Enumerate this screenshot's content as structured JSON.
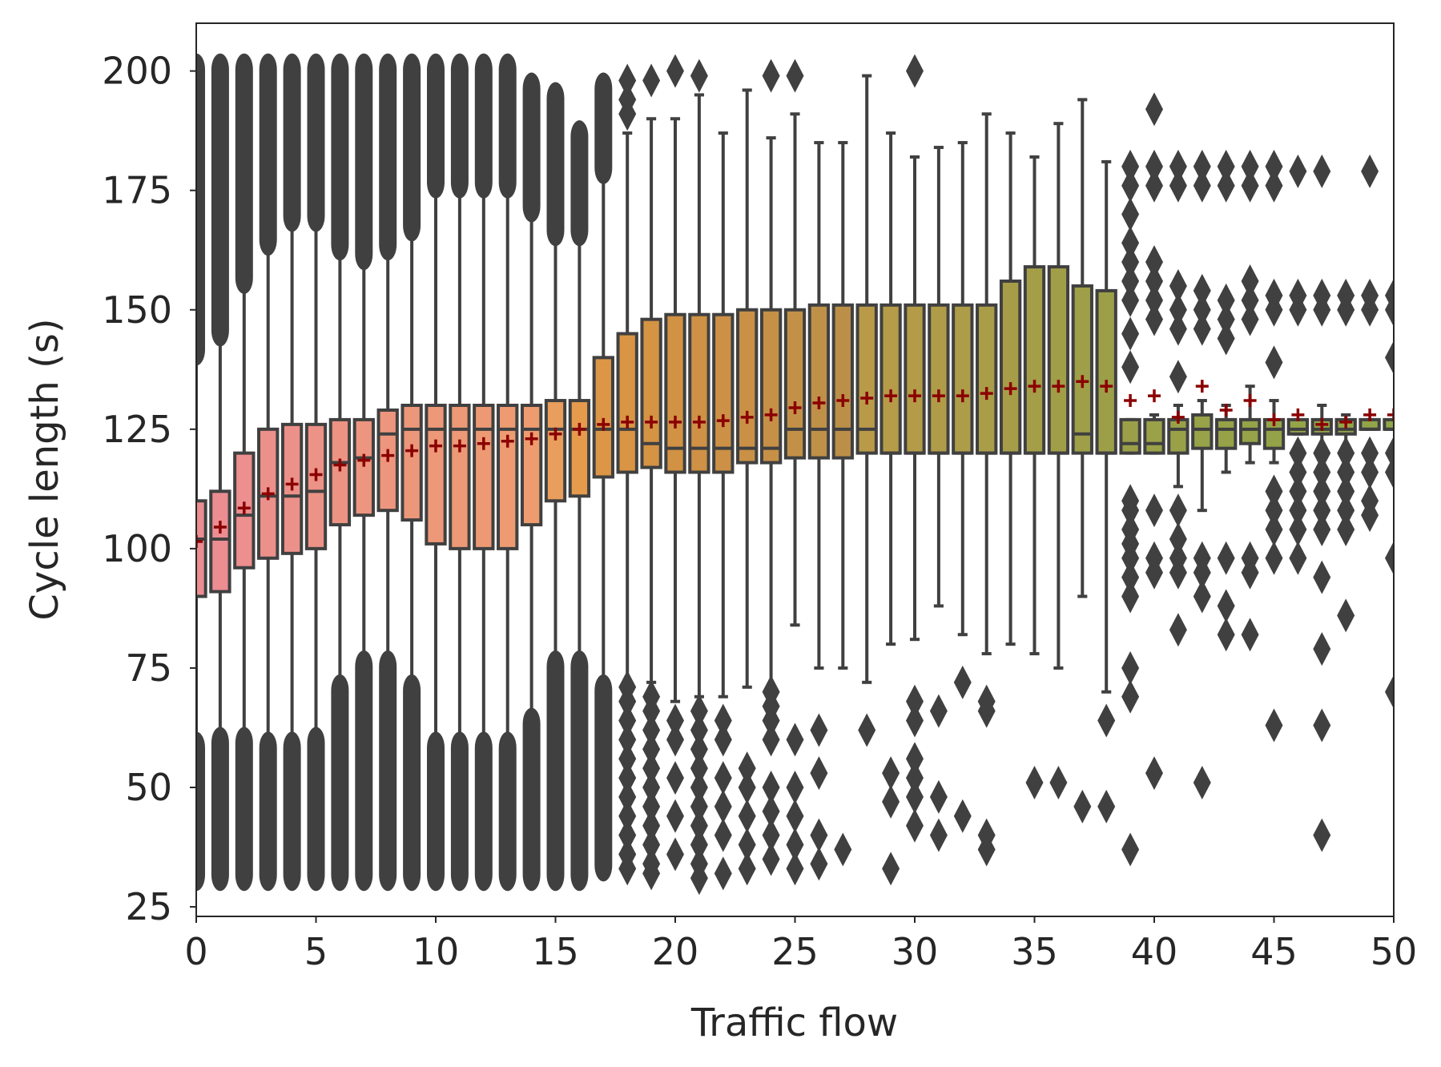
{
  "chart_data": {
    "type": "box",
    "title": "",
    "xlabel": "Traffic flow",
    "ylabel": "Cycle length (s)",
    "xlim": [
      0,
      50
    ],
    "ylim": [
      23,
      210
    ],
    "xticks": [
      "0",
      "5",
      "10",
      "15",
      "20",
      "25",
      "30",
      "35",
      "40",
      "45",
      "50"
    ],
    "yticks": [
      "25",
      "50",
      "75",
      "100",
      "125",
      "150",
      "175",
      "200"
    ],
    "grid": false,
    "legend": "none",
    "mean_marker_color": "#8b0000",
    "box_edge_color": "#404040",
    "outlier_color": "#404040",
    "boxes": [
      {
        "x": 0,
        "q1": 90,
        "median": 102,
        "q3": 110,
        "whislo": 60,
        "whishi": 140,
        "mean": 101.5,
        "fill": "#ec8d92",
        "outliers": {
          "dense": [
            [
              30,
              60
            ],
            [
              140,
              202
            ]
          ]
        }
      },
      {
        "x": 1,
        "q1": 91,
        "median": 102,
        "q3": 112,
        "whislo": 61,
        "whishi": 144,
        "mean": 104.5,
        "fill": "#ec8d91",
        "outliers": {
          "dense": [
            [
              30,
              61
            ],
            [
              144,
              202
            ]
          ]
        }
      },
      {
        "x": 2,
        "q1": 96,
        "median": 107,
        "q3": 120,
        "whislo": 61,
        "whishi": 155,
        "mean": 108.5,
        "fill": "#ec8f8e",
        "outliers": {
          "dense": [
            [
              30,
              61
            ],
            [
              155,
              202
            ]
          ]
        }
      },
      {
        "x": 3,
        "q1": 98,
        "median": 111,
        "q3": 125,
        "whislo": 60,
        "whishi": 163,
        "mean": 111.5,
        "fill": "#ec908b",
        "outliers": {
          "dense": [
            [
              30,
              60
            ],
            [
              163,
              202
            ]
          ]
        }
      },
      {
        "x": 4,
        "q1": 99,
        "median": 111,
        "q3": 126,
        "whislo": 60,
        "whishi": 168,
        "mean": 113.5,
        "fill": "#ec9189",
        "outliers": {
          "dense": [
            [
              30,
              60
            ],
            [
              168,
              202
            ]
          ]
        }
      },
      {
        "x": 5,
        "q1": 100,
        "median": 112,
        "q3": 126,
        "whislo": 61,
        "whishi": 168,
        "mean": 115.5,
        "fill": "#ec9286",
        "outliers": {
          "dense": [
            [
              30,
              61
            ],
            [
              168,
              202
            ]
          ]
        }
      },
      {
        "x": 6,
        "q1": 105,
        "median": 118,
        "q3": 127,
        "whislo": 72,
        "whishi": 162,
        "mean": 117.5,
        "fill": "#ed9383",
        "outliers": {
          "dense": [
            [
              30,
              72
            ],
            [
              162,
              202
            ]
          ]
        }
      },
      {
        "x": 7,
        "q1": 107,
        "median": 119,
        "q3": 127,
        "whislo": 77,
        "whishi": 160,
        "mean": 118.5,
        "fill": "#ed9580",
        "outliers": {
          "dense": [
            [
              30,
              77
            ],
            [
              160,
              202
            ]
          ]
        }
      },
      {
        "x": 8,
        "q1": 108,
        "median": 124,
        "q3": 129,
        "whislo": 77,
        "whishi": 162,
        "mean": 119.5,
        "fill": "#ed967d",
        "outliers": {
          "dense": [
            [
              30,
              77
            ],
            [
              162,
              202
            ]
          ]
        }
      },
      {
        "x": 9,
        "q1": 106,
        "median": 125,
        "q3": 130,
        "whislo": 72,
        "whishi": 166,
        "mean": 120.5,
        "fill": "#ed977a",
        "outliers": {
          "dense": [
            [
              30,
              72
            ],
            [
              166,
              202
            ]
          ]
        }
      },
      {
        "x": 10,
        "q1": 101,
        "median": 125,
        "q3": 130,
        "whislo": 60,
        "whishi": 175,
        "mean": 121.5,
        "fill": "#ed9878",
        "outliers": {
          "dense": [
            [
              30,
              60
            ],
            [
              175,
              202
            ]
          ]
        }
      },
      {
        "x": 11,
        "q1": 100,
        "median": 125,
        "q3": 130,
        "whislo": 60,
        "whishi": 175,
        "mean": 121.5,
        "fill": "#ed9976",
        "outliers": {
          "dense": [
            [
              30,
              60
            ],
            [
              175,
              202
            ]
          ]
        }
      },
      {
        "x": 12,
        "q1": 100,
        "median": 125,
        "q3": 130,
        "whislo": 60,
        "whishi": 175,
        "mean": 122,
        "fill": "#ed9a74",
        "outliers": {
          "dense": [
            [
              30,
              60
            ],
            [
              175,
              202
            ]
          ]
        }
      },
      {
        "x": 13,
        "q1": 100,
        "median": 125,
        "q3": 130,
        "whislo": 60,
        "whishi": 175,
        "mean": 122.5,
        "fill": "#ee9b72",
        "outliers": {
          "dense": [
            [
              30,
              60
            ],
            [
              175,
              202
            ]
          ]
        }
      },
      {
        "x": 14,
        "q1": 105,
        "median": 125,
        "q3": 130,
        "whislo": 65,
        "whishi": 170,
        "mean": 123,
        "fill": "#ee9c6f",
        "outliers": {
          "dense": [
            [
              30,
              65
            ],
            [
              170,
              198
            ]
          ]
        }
      },
      {
        "x": 15,
        "q1": 110,
        "median": 125,
        "q3": 131,
        "whislo": 77,
        "whishi": 165,
        "mean": 124,
        "fill": "#e99e5d",
        "outliers": {
          "dense": [
            [
              30,
              77
            ],
            [
              165,
              196
            ]
          ]
        }
      },
      {
        "x": 16,
        "q1": 111,
        "median": 125,
        "q3": 131,
        "whislo": 77,
        "whishi": 165,
        "mean": 125,
        "fill": "#e59a4c",
        "outliers": {
          "dense": [
            [
              30,
              77
            ],
            [
              165,
              188
            ]
          ]
        }
      },
      {
        "x": 17,
        "q1": 115,
        "median": 125,
        "q3": 140,
        "whislo": 72,
        "whishi": 178,
        "mean": 126,
        "fill": "#dd9646",
        "outliers": {
          "dense": [
            [
              32,
              72
            ],
            [
              178,
              198
            ]
          ]
        }
      },
      {
        "x": 18,
        "q1": 116,
        "median": 125,
        "q3": 145,
        "whislo": 72,
        "whishi": 187,
        "mean": 126.5,
        "fill": "#d99444",
        "outliers": {
          "points": [
            33,
            36,
            40,
            44,
            48,
            52,
            56,
            60,
            64,
            68,
            71,
            191,
            194,
            198
          ]
        }
      },
      {
        "x": 19,
        "q1": 117,
        "median": 122,
        "q3": 148,
        "whislo": 72,
        "whishi": 190,
        "mean": 126.5,
        "fill": "#d59344",
        "outliers": {
          "points": [
            32,
            34,
            38,
            42,
            46,
            50,
            54,
            58,
            62,
            66,
            69,
            198
          ]
        }
      },
      {
        "x": 20,
        "q1": 116,
        "median": 121,
        "q3": 149,
        "whislo": 68,
        "whishi": 190,
        "mean": 126.5,
        "fill": "#d19244",
        "outliers": {
          "points": [
            36,
            44,
            52,
            60,
            64,
            200
          ]
        }
      },
      {
        "x": 21,
        "q1": 116,
        "median": 121,
        "q3": 149,
        "whislo": 69,
        "whishi": 195,
        "mean": 126.5,
        "fill": "#cf9145",
        "outliers": {
          "points": [
            31,
            34,
            38,
            42,
            46,
            50,
            54,
            58,
            62,
            66,
            199
          ]
        }
      },
      {
        "x": 22,
        "q1": 116,
        "median": 121,
        "q3": 149,
        "whislo": 69,
        "whishi": 187,
        "mean": 126.8,
        "fill": "#cc9046",
        "outliers": {
          "points": [
            32,
            40,
            46,
            52,
            60,
            64
          ]
        }
      },
      {
        "x": 23,
        "q1": 118,
        "median": 121,
        "q3": 150,
        "whislo": 71,
        "whishi": 196,
        "mean": 127.5,
        "fill": "#c99046",
        "outliers": {
          "points": [
            33,
            38,
            44,
            50,
            54
          ]
        }
      },
      {
        "x": 24,
        "q1": 118,
        "median": 121,
        "q3": 150,
        "whislo": 70,
        "whishi": 186,
        "mean": 128,
        "fill": "#c69047",
        "outliers": {
          "points": [
            35,
            40,
            45,
            50,
            60,
            64,
            67,
            70,
            199
          ]
        }
      },
      {
        "x": 25,
        "q1": 119,
        "median": 125,
        "q3": 150,
        "whislo": 84,
        "whishi": 191,
        "mean": 129.5,
        "fill": "#c39048",
        "outliers": {
          "points": [
            33,
            38,
            44,
            50,
            60,
            199
          ]
        }
      },
      {
        "x": 26,
        "q1": 119,
        "median": 125,
        "q3": 151,
        "whislo": 75,
        "whishi": 185,
        "mean": 130.5,
        "fill": "#bf9048",
        "outliers": {
          "points": [
            34,
            40,
            53,
            62
          ]
        }
      },
      {
        "x": 27,
        "q1": 119,
        "median": 125,
        "q3": 151,
        "whislo": 75,
        "whishi": 185,
        "mean": 131,
        "fill": "#bc8f48",
        "outliers": {
          "points": [
            37
          ]
        }
      },
      {
        "x": 28,
        "q1": 120,
        "median": 125,
        "q3": 151,
        "whislo": 72,
        "whishi": 199,
        "mean": 131.5,
        "fill": "#b99a48",
        "outliers": {
          "points": [
            62
          ]
        }
      },
      {
        "x": 29,
        "q1": 120,
        "median": 120,
        "q3": 151,
        "whislo": 80,
        "whishi": 187,
        "mean": 132,
        "fill": "#b69b48",
        "outliers": {
          "points": [
            33,
            47,
            53
          ]
        }
      },
      {
        "x": 30,
        "q1": 120,
        "median": 120,
        "q3": 151,
        "whislo": 81,
        "whishi": 182,
        "mean": 132,
        "fill": "#b39b48",
        "outliers": {
          "points": [
            42,
            48,
            52,
            56,
            64,
            68,
            200
          ]
        }
      },
      {
        "x": 31,
        "q1": 120,
        "median": 120,
        "q3": 151,
        "whislo": 88,
        "whishi": 184,
        "mean": 132,
        "fill": "#b09c48",
        "outliers": {
          "points": [
            40,
            48,
            66
          ]
        }
      },
      {
        "x": 32,
        "q1": 120,
        "median": 120,
        "q3": 151,
        "whislo": 82,
        "whishi": 185,
        "mean": 132,
        "fill": "#ad9c48",
        "outliers": {
          "points": [
            44,
            72
          ]
        }
      },
      {
        "x": 33,
        "q1": 120,
        "median": 120,
        "q3": 151,
        "whislo": 78,
        "whishi": 191,
        "mean": 132.5,
        "fill": "#aa9d48",
        "outliers": {
          "points": [
            37,
            40,
            66,
            68
          ]
        }
      },
      {
        "x": 34,
        "q1": 120,
        "median": 120,
        "q3": 156,
        "whislo": 80,
        "whishi": 187,
        "mean": 133.5,
        "fill": "#a79d48",
        "outliers": {
          "points": []
        }
      },
      {
        "x": 35,
        "q1": 120,
        "median": 120,
        "q3": 159,
        "whislo": 78,
        "whishi": 182,
        "mean": 134,
        "fill": "#a49e48",
        "outliers": {
          "points": [
            51
          ]
        }
      },
      {
        "x": 36,
        "q1": 120,
        "median": 120,
        "q3": 159,
        "whislo": 75,
        "whishi": 189,
        "mean": 134,
        "fill": "#a19e48",
        "outliers": {
          "points": [
            51
          ]
        }
      },
      {
        "x": 37,
        "q1": 120,
        "median": 124,
        "q3": 155,
        "whislo": 90,
        "whishi": 194,
        "mean": 135,
        "fill": "#9e9f48",
        "outliers": {
          "points": [
            46
          ]
        }
      },
      {
        "x": 38,
        "q1": 120,
        "median": 120,
        "q3": 154,
        "whislo": 70,
        "whishi": 181,
        "mean": 134,
        "fill": "#9c9f48",
        "outliers": {
          "points": [
            46,
            64
          ]
        }
      },
      {
        "x": 39,
        "q1": 120,
        "median": 122,
        "q3": 127,
        "whislo": 120,
        "whishi": 127,
        "mean": 131,
        "fill": "#9ba048",
        "outliers": {
          "points": [
            37,
            69,
            75,
            90,
            94,
            98,
            101,
            104,
            108,
            110,
            138,
            145,
            152,
            156,
            160,
            164,
            170,
            176,
            180
          ]
        }
      },
      {
        "x": 40,
        "q1": 120,
        "median": 122,
        "q3": 127,
        "whislo": 120,
        "whishi": 128,
        "mean": 132,
        "fill": "#9aa148",
        "outliers": {
          "points": [
            53,
            95,
            98,
            108,
            148,
            152,
            156,
            160,
            176,
            180,
            192
          ]
        }
      },
      {
        "x": 41,
        "q1": 120,
        "median": 125,
        "q3": 127,
        "whislo": 113,
        "whishi": 130,
        "mean": 127.5,
        "fill": "#99a148",
        "outliers": {
          "points": [
            83,
            95,
            98,
            102,
            108,
            136,
            146,
            150,
            155,
            176,
            180
          ]
        }
      },
      {
        "x": 42,
        "q1": 121,
        "median": 125,
        "q3": 128,
        "whislo": 108,
        "whishi": 131,
        "mean": 134,
        "fill": "#98a248",
        "outliers": {
          "points": [
            51,
            90,
            95,
            98,
            146,
            150,
            154,
            176,
            180
          ]
        }
      },
      {
        "x": 43,
        "q1": 121,
        "median": 125,
        "q3": 127,
        "whislo": 116,
        "whishi": 130,
        "mean": 129,
        "fill": "#97a248",
        "outliers": {
          "points": [
            82,
            88,
            98,
            144,
            148,
            152,
            176,
            180
          ]
        }
      },
      {
        "x": 44,
        "q1": 122,
        "median": 125,
        "q3": 127,
        "whislo": 118,
        "whishi": 134,
        "mean": 131,
        "fill": "#96a348",
        "outliers": {
          "points": [
            82,
            95,
            98,
            148,
            152,
            156,
            176,
            180
          ]
        }
      },
      {
        "x": 45,
        "q1": 121,
        "median": 125,
        "q3": 127,
        "whislo": 118,
        "whishi": 131,
        "mean": 127,
        "fill": "#95a348",
        "outliers": {
          "points": [
            63,
            98,
            104,
            108,
            112,
            139,
            150,
            153,
            176,
            180
          ]
        }
      },
      {
        "x": 46,
        "q1": 124,
        "median": 125,
        "q3": 127,
        "whislo": 124,
        "whishi": 127,
        "mean": 128,
        "fill": "#94a448",
        "outliers": {
          "points": [
            98,
            104,
            108,
            112,
            116,
            120,
            150,
            153,
            179
          ]
        }
      },
      {
        "x": 47,
        "q1": 124,
        "median": 125,
        "q3": 127,
        "whislo": 120,
        "whishi": 130,
        "mean": 126,
        "fill": "#93a448",
        "outliers": {
          "points": [
            40,
            63,
            79,
            94,
            104,
            108,
            112,
            116,
            120,
            150,
            153,
            179
          ]
        }
      },
      {
        "x": 48,
        "q1": 124,
        "median": 125,
        "q3": 127,
        "whislo": 120,
        "whishi": 128,
        "mean": 126.5,
        "fill": "#92a548",
        "outliers": {
          "points": [
            86,
            104,
            108,
            112,
            116,
            120,
            150,
            153
          ]
        }
      },
      {
        "x": 49,
        "q1": 125,
        "median": 125,
        "q3": 127,
        "whislo": 125,
        "whishi": 127,
        "mean": 128,
        "fill": "#91a548",
        "outliers": {
          "points": [
            107,
            110,
            116,
            120,
            150,
            153,
            179
          ]
        }
      },
      {
        "x": 50,
        "q1": 125,
        "median": 125,
        "q3": 127,
        "whislo": 125,
        "whishi": 127,
        "mean": 128,
        "fill": "#90a648",
        "outliers": {
          "points": [
            70,
            98,
            116,
            120,
            140,
            150,
            153
          ]
        }
      }
    ]
  }
}
